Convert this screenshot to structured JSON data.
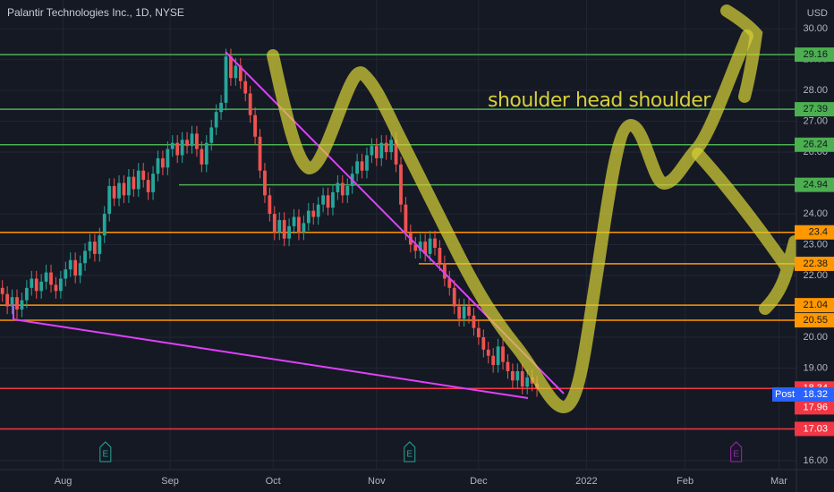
{
  "chart_data": {
    "type": "candlestick",
    "title": "Palantir Technologies Inc., 1D, NYSE",
    "currency": "USD",
    "annotation": "shoulder head shoulder",
    "up_color": "#26a69a",
    "down_color": "#ef5350",
    "grid": true,
    "xlim": [
      -0.5,
      163.4
    ],
    "ylim": [
      15.71,
      30.93
    ],
    "xticks": [
      {
        "value": 12.5,
        "label": "Aug"
      },
      {
        "value": 34.5,
        "label": "Sep"
      },
      {
        "value": 55.7,
        "label": "Oct"
      },
      {
        "value": 77,
        "label": "Nov"
      },
      {
        "value": 98,
        "label": "Dec"
      },
      {
        "value": 120.2,
        "label": "2022"
      },
      {
        "value": 140.5,
        "label": "Feb"
      },
      {
        "value": 159.8,
        "label": "Mar"
      }
    ],
    "yticks": [
      {
        "value": 16,
        "label": "16.00"
      },
      {
        "value": 19,
        "label": "19.00"
      },
      {
        "value": 20,
        "label": "20.00"
      },
      {
        "value": 22,
        "label": "22.00"
      },
      {
        "value": 23,
        "label": "23.00"
      },
      {
        "value": 24,
        "label": "24.00"
      },
      {
        "value": 26,
        "label": "26.00"
      },
      {
        "value": 27,
        "label": "27.00"
      },
      {
        "value": 28,
        "label": "28.00"
      },
      {
        "value": 29,
        "label": "29.00"
      },
      {
        "value": 30,
        "label": "30.00"
      }
    ],
    "levels": [
      {
        "value": 29.16,
        "color": "#4caf50"
      },
      {
        "value": 27.39,
        "color": "#4caf50"
      },
      {
        "value": 26.24,
        "color": "#4caf50"
      },
      {
        "value": 24.94,
        "color": "#4caf50"
      },
      {
        "value": 23.4,
        "color": "#ff9800"
      },
      {
        "value": 22.38,
        "color": "#ff9800"
      },
      {
        "value": 21.04,
        "color": "#ff9800"
      },
      {
        "value": 20.55,
        "color": "#ff9800"
      },
      {
        "value": 18.34,
        "color": "#f23645"
      },
      {
        "value": 17.96,
        "color": "#f23645"
      },
      {
        "value": 17.03,
        "color": "#f23645"
      }
    ],
    "post_market": {
      "label": "Post",
      "value": 18.32,
      "color": "#2962ff"
    },
    "events": [
      {
        "label": "E",
        "x": 21.2,
        "color": "#26a69a"
      },
      {
        "label": "E",
        "x": 83.8,
        "color": "#26a69a"
      },
      {
        "label": "E",
        "x": 151,
        "color": "#9c27b0"
      }
    ],
    "ohlc": [
      [
        21.6,
        21.85,
        21.15,
        21.4
      ],
      [
        21.4,
        21.65,
        20.75,
        21.0
      ],
      [
        21.0,
        21.55,
        20.75,
        21.3
      ],
      [
        21.3,
        21.55,
        20.6,
        20.9
      ],
      [
        20.9,
        21.45,
        20.65,
        21.2
      ],
      [
        21.2,
        21.85,
        20.95,
        21.6
      ],
      [
        21.6,
        22.15,
        21.35,
        21.9
      ],
      [
        21.9,
        22.15,
        21.25,
        21.5
      ],
      [
        21.5,
        22.05,
        21.25,
        21.8
      ],
      [
        21.8,
        22.35,
        21.55,
        22.1
      ],
      [
        22.1,
        22.35,
        21.45,
        21.7
      ],
      [
        21.7,
        21.95,
        21.25,
        21.5
      ],
      [
        21.5,
        22.15,
        21.25,
        21.9
      ],
      [
        21.9,
        22.45,
        21.65,
        22.2
      ],
      [
        22.2,
        22.75,
        21.95,
        22.5
      ],
      [
        22.5,
        22.75,
        21.75,
        22.0
      ],
      [
        22.0,
        22.65,
        21.75,
        22.4
      ],
      [
        22.4,
        23.05,
        22.15,
        22.8
      ],
      [
        22.8,
        23.35,
        22.55,
        23.1
      ],
      [
        23.1,
        23.35,
        22.45,
        22.7
      ],
      [
        22.7,
        23.55,
        22.45,
        23.3
      ],
      [
        23.3,
        24.25,
        23.05,
        24.0
      ],
      [
        24.0,
        25.15,
        23.75,
        24.9
      ],
      [
        24.9,
        25.15,
        24.25,
        24.5
      ],
      [
        24.5,
        25.25,
        24.25,
        25.0
      ],
      [
        25.0,
        25.25,
        24.35,
        24.6
      ],
      [
        24.6,
        25.45,
        24.35,
        25.2
      ],
      [
        25.2,
        25.45,
        24.55,
        24.8
      ],
      [
        24.8,
        25.65,
        24.55,
        25.4
      ],
      [
        25.4,
        25.65,
        24.85,
        25.1
      ],
      [
        25.1,
        25.35,
        24.45,
        24.7
      ],
      [
        24.7,
        25.55,
        24.45,
        25.3
      ],
      [
        25.3,
        26.05,
        25.05,
        25.8
      ],
      [
        25.8,
        26.05,
        25.25,
        25.5
      ],
      [
        25.5,
        26.35,
        25.25,
        26.1
      ],
      [
        26.1,
        26.55,
        25.85,
        26.3
      ],
      [
        26.3,
        26.55,
        25.65,
        25.9
      ],
      [
        25.9,
        26.65,
        25.65,
        26.4
      ],
      [
        26.4,
        26.65,
        25.95,
        26.2
      ],
      [
        26.2,
        26.85,
        25.95,
        26.6
      ],
      [
        26.6,
        26.85,
        25.85,
        26.1
      ],
      [
        26.1,
        26.35,
        25.35,
        25.6
      ],
      [
        25.6,
        26.55,
        25.35,
        26.3
      ],
      [
        26.3,
        27.05,
        26.05,
        26.8
      ],
      [
        26.8,
        27.55,
        26.55,
        27.3
      ],
      [
        27.3,
        27.85,
        27.05,
        27.6
      ],
      [
        27.6,
        29.35,
        27.35,
        29.1
      ],
      [
        29.1,
        29.35,
        28.15,
        28.4
      ],
      [
        28.4,
        29.05,
        28.15,
        28.8
      ],
      [
        28.8,
        29.05,
        28.05,
        28.3
      ],
      [
        28.3,
        28.55,
        27.65,
        27.9
      ],
      [
        27.9,
        28.15,
        26.95,
        27.2
      ],
      [
        27.2,
        27.45,
        26.25,
        26.5
      ],
      [
        26.5,
        26.75,
        25.15,
        25.4
      ],
      [
        25.4,
        25.65,
        24.35,
        24.6
      ],
      [
        24.6,
        24.85,
        23.75,
        24.0
      ],
      [
        24.0,
        24.25,
        23.15,
        23.4
      ],
      [
        23.4,
        24.05,
        23.15,
        23.8
      ],
      [
        23.8,
        24.05,
        22.95,
        23.2
      ],
      [
        23.2,
        23.85,
        22.95,
        23.6
      ],
      [
        23.6,
        24.15,
        23.35,
        23.9
      ],
      [
        23.9,
        24.15,
        23.15,
        23.4
      ],
      [
        23.4,
        23.95,
        23.15,
        23.7
      ],
      [
        23.7,
        24.35,
        23.45,
        24.1
      ],
      [
        24.1,
        24.35,
        23.65,
        23.9
      ],
      [
        23.9,
        24.55,
        23.65,
        24.3
      ],
      [
        24.3,
        24.85,
        24.05,
        24.6
      ],
      [
        24.6,
        24.85,
        23.95,
        24.2
      ],
      [
        24.2,
        24.95,
        23.95,
        24.7
      ],
      [
        24.7,
        25.25,
        24.45,
        25.0
      ],
      [
        25.0,
        25.25,
        24.35,
        24.6
      ],
      [
        24.6,
        25.15,
        24.35,
        24.9
      ],
      [
        24.9,
        25.55,
        24.65,
        25.3
      ],
      [
        25.3,
        25.95,
        25.05,
        25.7
      ],
      [
        25.7,
        25.95,
        25.15,
        25.4
      ],
      [
        25.4,
        26.15,
        25.15,
        25.9
      ],
      [
        25.9,
        26.45,
        25.65,
        26.2
      ],
      [
        26.2,
        26.45,
        25.55,
        25.8
      ],
      [
        25.8,
        26.55,
        25.55,
        26.3
      ],
      [
        26.3,
        26.55,
        25.75,
        26.0
      ],
      [
        26.0,
        26.65,
        25.75,
        26.4
      ],
      [
        26.4,
        26.65,
        25.35,
        25.6
      ],
      [
        25.6,
        25.85,
        24.05,
        24.3
      ],
      [
        24.3,
        24.55,
        23.15,
        23.4
      ],
      [
        23.4,
        23.65,
        22.75,
        23.0
      ],
      [
        23.0,
        23.25,
        22.55,
        22.8
      ],
      [
        22.8,
        23.35,
        22.55,
        23.1
      ],
      [
        23.1,
        23.35,
        22.45,
        22.7
      ],
      [
        22.7,
        23.45,
        22.45,
        23.2
      ],
      [
        23.2,
        23.45,
        22.65,
        22.9
      ],
      [
        22.9,
        23.15,
        22.15,
        22.4
      ],
      [
        22.4,
        22.65,
        21.65,
        21.9
      ],
      [
        21.9,
        22.15,
        21.35,
        21.6
      ],
      [
        21.6,
        21.85,
        20.75,
        21.0
      ],
      [
        21.0,
        21.25,
        20.35,
        20.6
      ],
      [
        20.6,
        21.25,
        20.35,
        21.0
      ],
      [
        21.0,
        21.25,
        20.45,
        20.7
      ],
      [
        20.7,
        20.95,
        20.05,
        20.3
      ],
      [
        20.3,
        20.55,
        19.75,
        20.0
      ],
      [
        20.0,
        20.25,
        19.35,
        19.6
      ],
      [
        19.6,
        19.85,
        19.15,
        19.4
      ],
      [
        19.4,
        19.65,
        18.85,
        19.1
      ],
      [
        19.1,
        19.95,
        18.85,
        19.7
      ],
      [
        19.7,
        19.95,
        18.95,
        19.2
      ],
      [
        19.2,
        19.45,
        18.65,
        18.9
      ],
      [
        18.9,
        19.15,
        18.35,
        18.6
      ],
      [
        18.6,
        19.15,
        18.35,
        18.9
      ],
      [
        18.9,
        19.15,
        18.15,
        18.4
      ],
      [
        18.4,
        18.95,
        18.15,
        18.7
      ],
      [
        18.7,
        18.95,
        18.25,
        18.5
      ],
      [
        18.5,
        18.75,
        18.07,
        18.32
      ]
    ]
  }
}
